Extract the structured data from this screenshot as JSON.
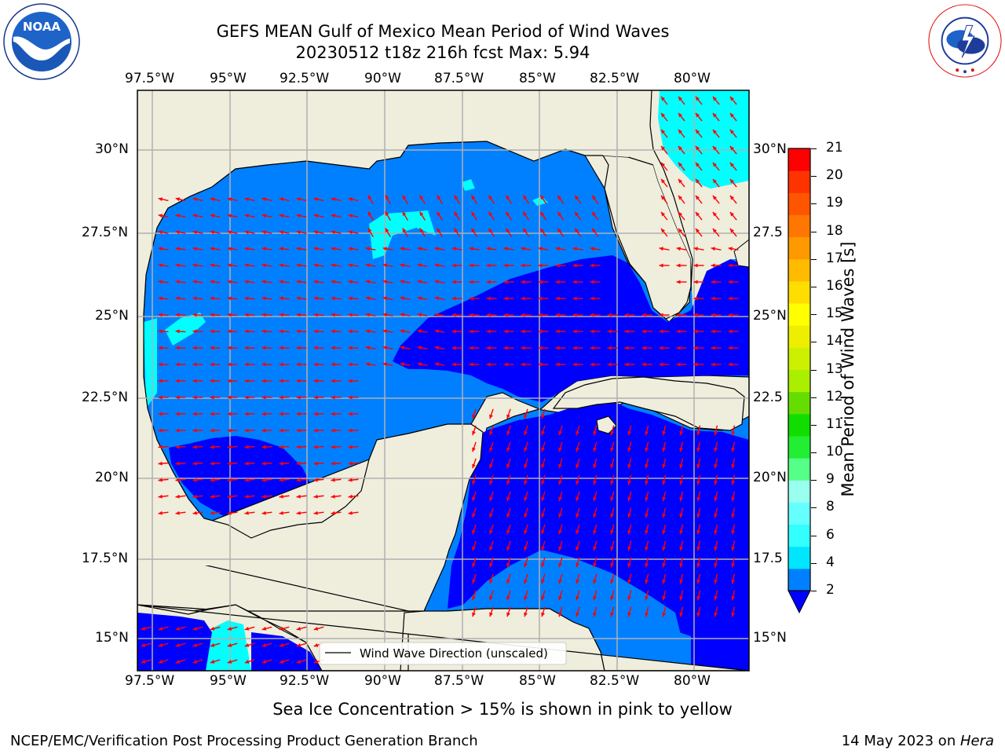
{
  "header": {
    "title_line1": "GEFS MEAN Gulf of Mexico Mean Period of Wind Waves",
    "title_line2": "20230512 t18z 216h fcst   Max: 5.94"
  },
  "logos": {
    "left": {
      "name": "NOAA",
      "ring_text": "NATIONAL OCEANIC AND ATMOSPHERIC ADMINISTRATION · U.S. DEPARTMENT OF COMMERCE"
    },
    "right": {
      "ring_text": "NATIONAL WEATHER SERVICE"
    }
  },
  "map": {
    "lon_labels": [
      "97.5°W",
      "95°W",
      "92.5°W",
      "90°W",
      "87.5°W",
      "85°W",
      "82.5°W",
      "80°W"
    ],
    "lat_labels": [
      "30°N",
      "27.5°N",
      "25°N",
      "22.5°N",
      "20°N",
      "17.5°N",
      "15°N"
    ],
    "right_lat_labels": [
      "30°N",
      "27.5",
      "25°N",
      "22.5",
      "20°N",
      "17.5",
      "15°N"
    ],
    "legend_text": "Wind Wave Direction (unscaled)",
    "colors": {
      "land": "#efeddc",
      "deep_blue": "#0000ff",
      "mid_blue": "#0080ff",
      "cyan": "#00ffff",
      "arrow": "#ff0000"
    }
  },
  "colorbar": {
    "label": "Mean Period of Wind Waves [s]",
    "ticks": [
      "21",
      "20",
      "19",
      "18",
      "17",
      "16",
      "15",
      "14",
      "13",
      "12",
      "11",
      "10",
      "9",
      "8",
      "6",
      "4",
      "2"
    ],
    "colors_bottom_to_top": [
      "#0080ff",
      "#00e6ff",
      "#33ffff",
      "#66ffff",
      "#99ffee",
      "#55ff88",
      "#22ee33",
      "#11dd00",
      "#66dd00",
      "#aaee00",
      "#ccf000",
      "#eeee00",
      "#ffff00",
      "#ffdd00",
      "#ffbb00",
      "#ff9900",
      "#ff7700",
      "#ff5500",
      "#ff3300",
      "#ff0000"
    ],
    "under_color": "#0000ff"
  },
  "caption": "Sea Ice Concentration > 15% is shown in pink to yellow",
  "footer": {
    "left": "NCEP/EMC/Verification Post Processing Product Generation Branch",
    "date": "14 May 2023 on ",
    "machine": "Hera"
  }
}
